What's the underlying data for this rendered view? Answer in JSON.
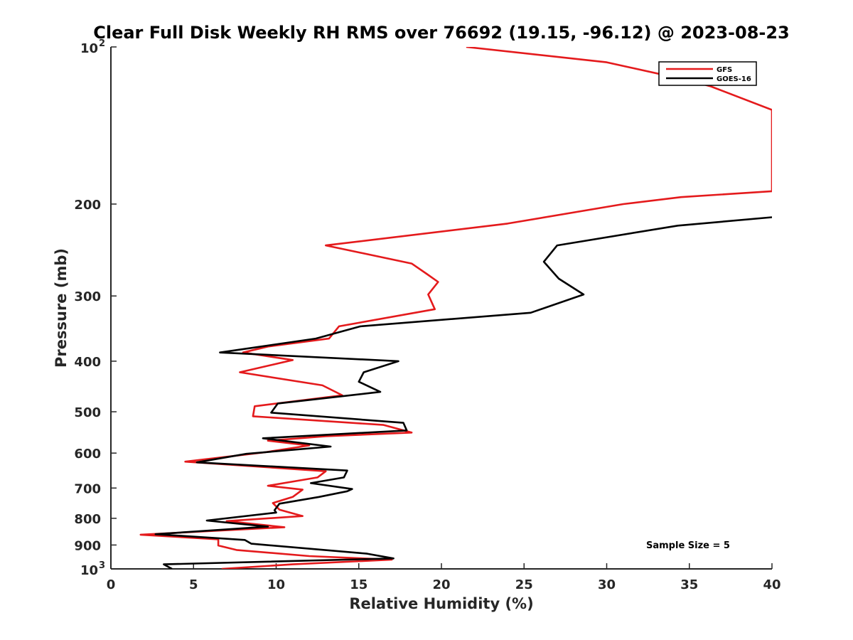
{
  "chart_data": {
    "type": "line",
    "title": "Clear Full Disk Weekly RH RMS over 76692 (19.15, -96.12) @ 2023-08-23",
    "xlabel": "Relative Humidity (%)",
    "ylabel": "Pressure (mb)",
    "xlim": [
      0,
      40
    ],
    "ylim": [
      1000,
      100
    ],
    "yscale": "log",
    "x_ticks": [
      0,
      5,
      10,
      15,
      20,
      25,
      30,
      35,
      40
    ],
    "y_ticks": [
      {
        "value": 100,
        "base": "10",
        "exp": "2"
      },
      {
        "value": 200,
        "label": "200"
      },
      {
        "value": 300,
        "label": "300"
      },
      {
        "value": 400,
        "label": "400"
      },
      {
        "value": 500,
        "label": "500"
      },
      {
        "value": 600,
        "label": "600"
      },
      {
        "value": 700,
        "label": "700"
      },
      {
        "value": 800,
        "label": "800"
      },
      {
        "value": 900,
        "label": "900"
      },
      {
        "value": 1000,
        "base": "10",
        "exp": "3"
      }
    ],
    "legend_position": "top-right",
    "annotation": "Sample Size = 5",
    "series": [
      {
        "name": "GFS",
        "color": "#e41a1c",
        "points": [
          [
            21.5,
            100
          ],
          [
            30.0,
            107
          ],
          [
            35.0,
            116
          ],
          [
            36.3,
            119
          ],
          [
            40.0,
            132
          ],
          [
            40.0,
            189
          ],
          [
            34.5,
            194
          ],
          [
            31.0,
            200
          ],
          [
            24.0,
            218
          ],
          [
            13.0,
            240
          ],
          [
            18.2,
            260
          ],
          [
            19.1,
            272
          ],
          [
            19.8,
            282
          ],
          [
            19.2,
            298
          ],
          [
            19.6,
            318
          ],
          [
            13.8,
            343
          ],
          [
            13.2,
            362
          ],
          [
            9.5,
            375
          ],
          [
            8.0,
            385
          ],
          [
            11.0,
            398
          ],
          [
            7.8,
            420
          ],
          [
            12.8,
            445
          ],
          [
            14.0,
            465
          ],
          [
            8.7,
            488
          ],
          [
            8.6,
            510
          ],
          [
            16.5,
            530
          ],
          [
            18.2,
            548
          ],
          [
            13.0,
            557
          ],
          [
            9.5,
            568
          ],
          [
            12.0,
            580
          ],
          [
            9.3,
            598
          ],
          [
            4.5,
            623
          ],
          [
            13.0,
            650
          ],
          [
            12.5,
            668
          ],
          [
            9.5,
            693
          ],
          [
            11.6,
            705
          ],
          [
            11.0,
            728
          ],
          [
            9.8,
            748
          ],
          [
            10.2,
            770
          ],
          [
            11.6,
            792
          ],
          [
            7.0,
            810
          ],
          [
            10.5,
            832
          ],
          [
            1.8,
            860
          ],
          [
            6.5,
            878
          ],
          [
            6.5,
            902
          ],
          [
            7.6,
            920
          ],
          [
            12.0,
            945
          ],
          [
            17.0,
            960
          ],
          [
            11.0,
            980
          ],
          [
            6.7,
            1000
          ]
        ]
      },
      {
        "name": "GOES-16",
        "color": "#000000",
        "points": [
          [
            40.0,
            212
          ],
          [
            34.3,
            220
          ],
          [
            27.0,
            240
          ],
          [
            26.2,
            258
          ],
          [
            27.1,
            278
          ],
          [
            28.6,
            298
          ],
          [
            25.4,
            323
          ],
          [
            15.1,
            343
          ],
          [
            12.4,
            362
          ],
          [
            6.6,
            385
          ],
          [
            17.4,
            400
          ],
          [
            15.3,
            420
          ],
          [
            15.0,
            438
          ],
          [
            16.3,
            458
          ],
          [
            10.1,
            482
          ],
          [
            9.7,
            502
          ],
          [
            17.7,
            525
          ],
          [
            17.9,
            543
          ],
          [
            9.2,
            562
          ],
          [
            13.3,
            583
          ],
          [
            8.2,
            602
          ],
          [
            5.2,
            625
          ],
          [
            14.3,
            648
          ],
          [
            14.1,
            668
          ],
          [
            12.1,
            685
          ],
          [
            14.6,
            703
          ],
          [
            14.3,
            710
          ],
          [
            12.6,
            728
          ],
          [
            10.2,
            750
          ],
          [
            9.9,
            772
          ],
          [
            10.0,
            780
          ],
          [
            5.8,
            808
          ],
          [
            9.5,
            830
          ],
          [
            2.7,
            858
          ],
          [
            8.1,
            880
          ],
          [
            8.5,
            895
          ],
          [
            15.5,
            935
          ],
          [
            17.1,
            955
          ],
          [
            3.2,
            980
          ],
          [
            3.7,
            1000
          ]
        ]
      }
    ]
  }
}
